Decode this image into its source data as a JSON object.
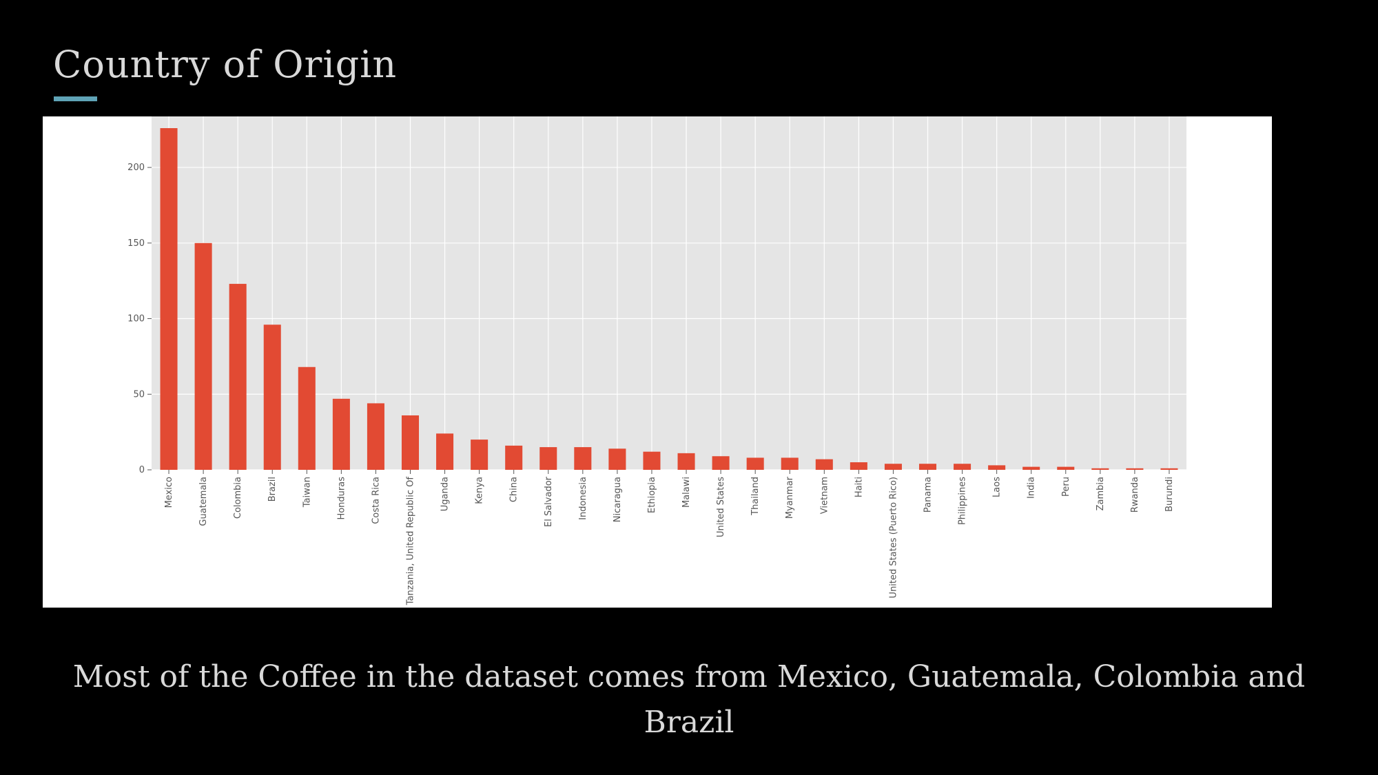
{
  "slide": {
    "title": "Country of Origin",
    "caption": "Most of the Coffee in the dataset comes from Mexico, Guatemala, Colombia and Brazil"
  },
  "colors": {
    "background": "#000000",
    "title_text": "#d9d9d9",
    "accent": "#5fa3b6",
    "bar": "#e24a33",
    "plot_background": "#e5e5e5",
    "grid": "#ffffff"
  },
  "chart_data": {
    "type": "bar",
    "title": "",
    "xlabel": "",
    "ylabel": "",
    "grid": true,
    "legend": false,
    "ylim": [
      0,
      226
    ],
    "yticks": [
      0,
      50,
      100,
      150,
      200
    ],
    "categories": [
      "Mexico",
      "Guatemala",
      "Colombia",
      "Brazil",
      "Taiwan",
      "Honduras",
      "Costa Rica",
      "Tanzania, United Republic Of",
      "Uganda",
      "Kenya",
      "China",
      "El Salvador",
      "Indonesia",
      "Nicaragua",
      "Ethiopia",
      "Malawi",
      "United States",
      "Thailand",
      "Myanmar",
      "Vietnam",
      "Haiti",
      "United States (Puerto Rico)",
      "Panama",
      "Philippines",
      "Laos",
      "India",
      "Peru",
      "Zambia",
      "Rwanda",
      "Burundi"
    ],
    "values": [
      226,
      150,
      123,
      96,
      68,
      47,
      44,
      36,
      24,
      20,
      16,
      15,
      15,
      14,
      12,
      11,
      9,
      8,
      8,
      7,
      5,
      4,
      4,
      4,
      3,
      2,
      2,
      1,
      1,
      1
    ]
  }
}
